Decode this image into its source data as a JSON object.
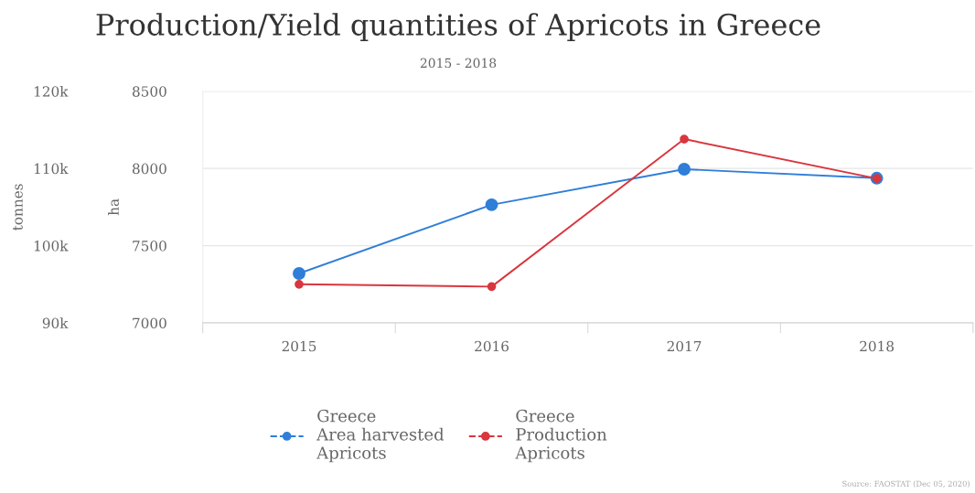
{
  "chart_data": {
    "type": "line",
    "title": "Production/Yield quantities of Apricots in Greece",
    "subtitle": "2015 - 2018",
    "categories": [
      "2015",
      "2016",
      "2017",
      "2018"
    ],
    "series": [
      {
        "name": "Greece\nArea harvested\nApricots",
        "color": "#2f7ed8",
        "values": [
          7320,
          7765,
          7995,
          7937
        ]
      },
      {
        "name": "Greece\nProduction\nApricots",
        "color": "#d9363e",
        "axis": "y2",
        "values": [
          95000,
          94700,
          113800,
          108700
        ]
      }
    ],
    "ylabel": "ha",
    "ylim": [
      7000,
      8500
    ],
    "yticks": [
      7000,
      7500,
      8000,
      8500
    ],
    "y2label": "tonnes",
    "y2lim": [
      90000,
      120000
    ],
    "y2ticks": [
      {
        "value": 90000,
        "label": "90k"
      },
      {
        "value": 100000,
        "label": "100k"
      },
      {
        "value": 110000,
        "label": "110k"
      },
      {
        "value": 120000,
        "label": "120k"
      }
    ],
    "grid": "y",
    "legend": "bottom",
    "marker": "circle",
    "line_style": "solid",
    "annotations": [
      "Source: FAOSTAT (Dec 05, 2020)"
    ]
  }
}
